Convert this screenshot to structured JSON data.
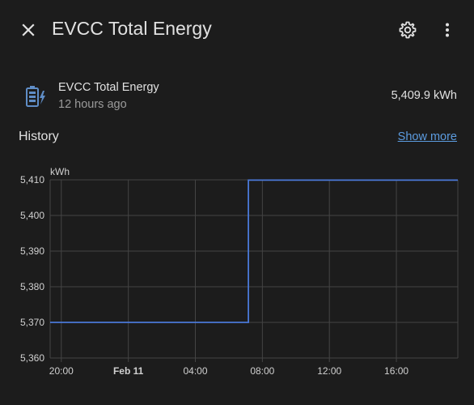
{
  "dialog": {
    "title": "EVCC Total Energy",
    "icons": {
      "close": "close-icon",
      "settings": "gear-icon",
      "more": "more-vertical-icon"
    }
  },
  "entity": {
    "icon": "battery-charging-icon",
    "name": "EVCC Total Energy",
    "last_changed": "12 hours ago",
    "value": "5,409.9 kWh"
  },
  "history": {
    "title": "History",
    "show_more": "Show more"
  },
  "colors": {
    "background": "#1c1c1c",
    "line": "#4a78d8",
    "link": "#5c9ce0",
    "icon": "#5f8dc6",
    "grid": "#444444"
  },
  "chart_data": {
    "type": "line",
    "unit": "kWh",
    "ylim": [
      5360,
      5410
    ],
    "ytick_values": [
      5360,
      5370,
      5380,
      5390,
      5400,
      5410
    ],
    "ytick_labels": [
      "5,360",
      "5,370",
      "5,380",
      "5,390",
      "5,400",
      "5,410"
    ],
    "xlim": [
      "2024-02-10T19:20",
      "2024-02-11T19:40"
    ],
    "xtick_values": [
      "2024-02-10T20:00",
      "2024-02-11T00:00",
      "2024-02-11T04:00",
      "2024-02-11T08:00",
      "2024-02-11T12:00",
      "2024-02-11T16:00"
    ],
    "xtick_labels": [
      "20:00",
      "Feb 11",
      "04:00",
      "08:00",
      "12:00",
      "16:00"
    ],
    "series": [
      {
        "x": [
          "2024-02-10T19:20",
          "2024-02-11T07:10",
          "2024-02-11T07:10",
          "2024-02-11T19:40"
        ],
        "y": [
          5370,
          5370,
          5409.9,
          5409.9
        ]
      }
    ],
    "grid": true
  }
}
